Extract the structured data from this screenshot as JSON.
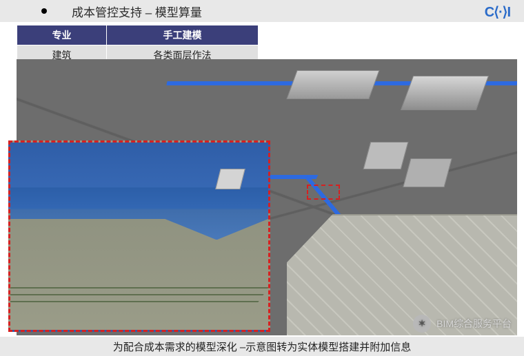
{
  "header": {
    "title": "成本管控支持 – 模型算量",
    "logo_text": "C⟨·⟩I"
  },
  "table": {
    "headers": [
      "专业",
      "手工建模"
    ],
    "rows": [
      [
        "建筑",
        "各类面层作法"
      ]
    ],
    "header_bg": "#3b3f7a",
    "header_fg": "#ffffff",
    "cell_bg": "#e0e0e0",
    "cell_fg": "#222222"
  },
  "scene": {
    "background_color": "#6d6d6d",
    "blue_edge_color": "#2d6ae0",
    "building_color": "#bfbfbf",
    "highlight_border_color": "#d62020"
  },
  "detail": {
    "border_color": "#d62020",
    "top_color": "#3a6cb8",
    "bottom_color": "#9a9c88"
  },
  "footer": {
    "text": "为配合成本需求的模型深化 –示意图转为实体模型搭建并附加信息"
  },
  "watermark": {
    "text": "BIM综合服务平台",
    "icon_glyph": "✶"
  }
}
